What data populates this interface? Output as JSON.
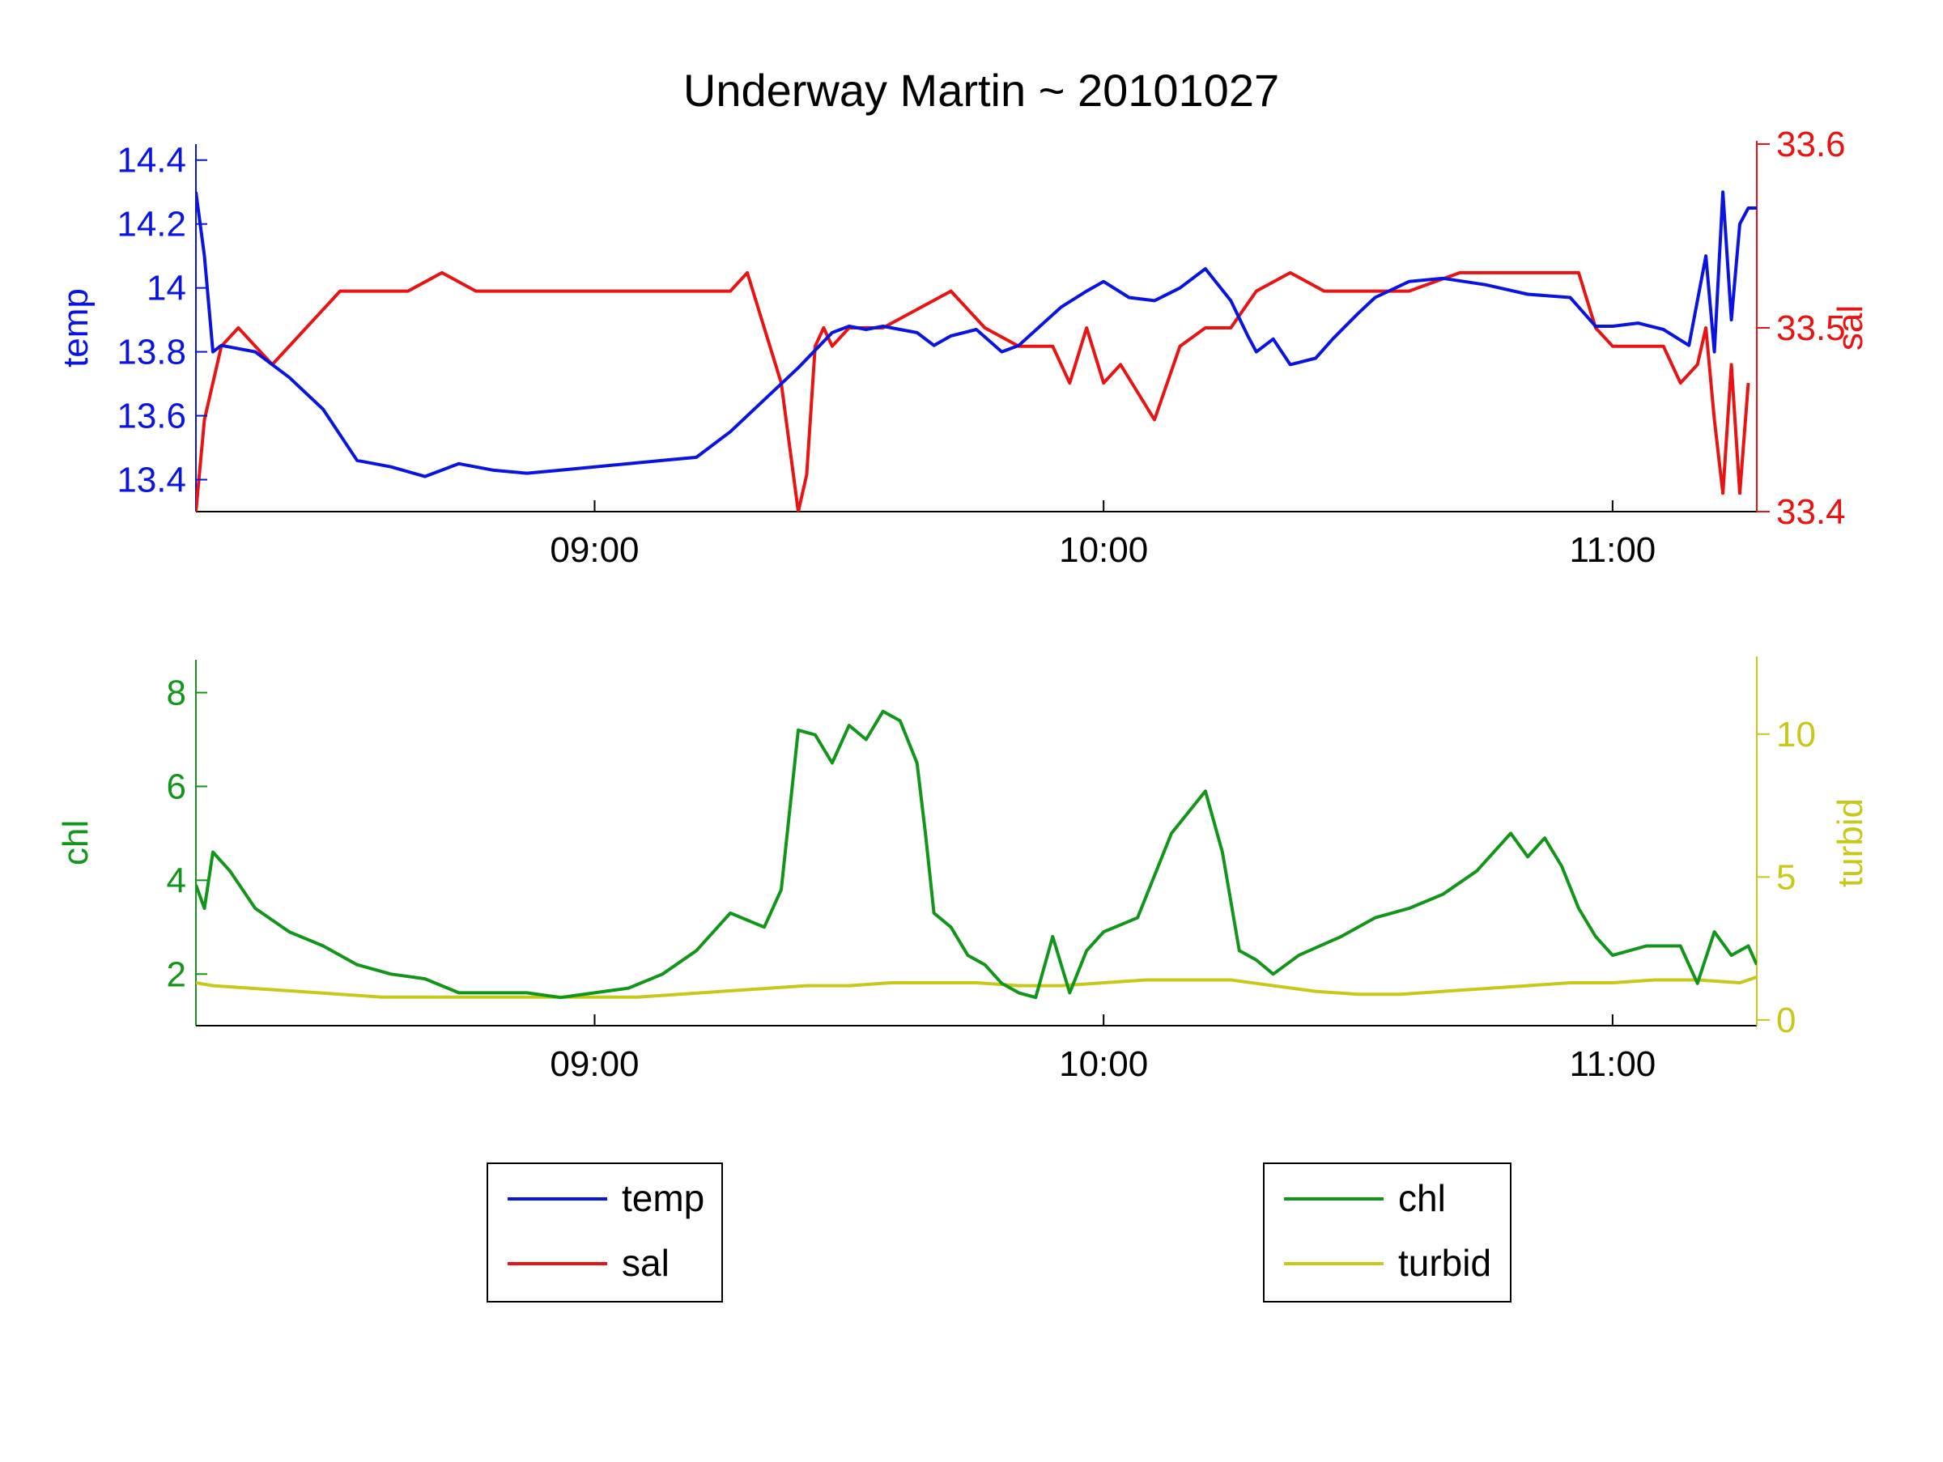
{
  "title": "Underway Martin ~ 20101027",
  "colors": {
    "temp": "#0a14e0",
    "sal": "#e81414",
    "chl": "#12961a",
    "turbid": "#c8c81a",
    "axis": "#000000"
  },
  "chart_data": [
    {
      "type": "line",
      "title": "Underway Martin ~ 20101027",
      "x_unit": "time of day (HH:MM)",
      "xlim": [
        "08:13",
        "11:17"
      ],
      "xticks": [
        "09:00",
        "10:00",
        "11:00"
      ],
      "left_axis": {
        "label": "temp",
        "ylim": [
          13.3,
          14.45
        ],
        "ticks": [
          "13.4",
          "13.6",
          "13.8",
          "14",
          "14.2",
          "14.4"
        ]
      },
      "right_axis": {
        "label": "sal",
        "ylim": [
          33.4,
          33.6
        ],
        "ticks": [
          "33.4",
          "33.5",
          "33.6"
        ]
      },
      "grid": false,
      "series": [
        {
          "name": "temp",
          "axis": "left",
          "x": [
            "08:13",
            "08:14",
            "08:15",
            "08:16",
            "08:18",
            "08:20",
            "08:24",
            "08:28",
            "08:32",
            "08:36",
            "08:40",
            "08:44",
            "08:48",
            "08:52",
            "08:56",
            "09:00",
            "09:04",
            "09:08",
            "09:12",
            "09:16",
            "09:20",
            "09:24",
            "09:28",
            "09:30",
            "09:32",
            "09:34",
            "09:36",
            "09:38",
            "09:40",
            "09:42",
            "09:45",
            "09:48",
            "09:50",
            "09:55",
            "09:58",
            "10:00",
            "10:03",
            "10:06",
            "10:09",
            "10:12",
            "10:15",
            "10:17",
            "10:18",
            "10:20",
            "10:22",
            "10:25",
            "10:27",
            "10:30",
            "10:32",
            "10:36",
            "10:40",
            "10:45",
            "10:50",
            "10:55",
            "10:58",
            "11:00",
            "11:03",
            "11:06",
            "11:09",
            "11:11",
            "11:12",
            "11:13",
            "11:14",
            "11:15",
            "11:16",
            "11:17"
          ],
          "y": [
            14.3,
            14.1,
            13.8,
            13.82,
            13.81,
            13.8,
            13.72,
            13.62,
            13.46,
            13.44,
            13.41,
            13.45,
            13.43,
            13.42,
            13.43,
            13.44,
            13.45,
            13.46,
            13.47,
            13.55,
            13.65,
            13.75,
            13.86,
            13.88,
            13.87,
            13.88,
            13.87,
            13.86,
            13.82,
            13.85,
            13.87,
            13.8,
            13.82,
            13.94,
            13.99,
            14.02,
            13.97,
            13.96,
            14.0,
            14.06,
            13.96,
            13.85,
            13.8,
            13.84,
            13.76,
            13.78,
            13.84,
            13.92,
            13.97,
            14.02,
            14.03,
            14.01,
            13.98,
            13.97,
            13.88,
            13.88,
            13.89,
            13.87,
            13.82,
            14.1,
            13.8,
            14.3,
            13.9,
            14.2,
            14.25,
            14.25
          ]
        },
        {
          "name": "sal",
          "axis": "right",
          "x": [
            "08:13",
            "08:14",
            "08:16",
            "08:18",
            "08:22",
            "08:26",
            "08:30",
            "08:34",
            "08:38",
            "08:42",
            "08:46",
            "08:50",
            "08:54",
            "09:00",
            "09:06",
            "09:12",
            "09:16",
            "09:18",
            "09:20",
            "09:22",
            "09:24",
            "09:25",
            "09:26",
            "09:27",
            "09:28",
            "09:30",
            "09:34",
            "09:38",
            "09:42",
            "09:46",
            "09:50",
            "09:54",
            "09:56",
            "09:58",
            "10:00",
            "10:02",
            "10:06",
            "10:09",
            "10:12",
            "10:15",
            "10:18",
            "10:22",
            "10:26",
            "10:30",
            "10:36",
            "10:42",
            "10:48",
            "10:54",
            "10:56",
            "10:58",
            "11:00",
            "11:06",
            "11:08",
            "11:10",
            "11:11",
            "11:12",
            "11:13",
            "11:14",
            "11:15",
            "11:16"
          ],
          "y": [
            33.4,
            33.45,
            33.49,
            33.5,
            33.48,
            33.5,
            33.52,
            33.52,
            33.52,
            33.53,
            33.52,
            33.52,
            33.52,
            33.52,
            33.52,
            33.52,
            33.52,
            33.53,
            33.5,
            33.47,
            33.4,
            33.42,
            33.49,
            33.5,
            33.49,
            33.5,
            33.5,
            33.51,
            33.52,
            33.5,
            33.49,
            33.49,
            33.47,
            33.5,
            33.47,
            33.48,
            33.45,
            33.49,
            33.5,
            33.5,
            33.52,
            33.53,
            33.52,
            33.52,
            33.52,
            33.53,
            33.53,
            33.53,
            33.53,
            33.5,
            33.49,
            33.49,
            33.47,
            33.48,
            33.5,
            33.45,
            33.41,
            33.48,
            33.41,
            33.47
          ]
        }
      ]
    },
    {
      "type": "line",
      "xlim": [
        "08:13",
        "11:17"
      ],
      "xticks": [
        "09:00",
        "10:00",
        "11:00"
      ],
      "left_axis": {
        "label": "chl",
        "ylim": [
          0.9,
          8.7
        ],
        "ticks": [
          "2",
          "4",
          "6",
          "8"
        ]
      },
      "right_axis": {
        "label": "turbid",
        "ylim": [
          -0.2,
          12.6
        ],
        "ticks": [
          "0",
          "5",
          "10"
        ]
      },
      "grid": false,
      "series": [
        {
          "name": "chl",
          "axis": "left",
          "x": [
            "08:13",
            "08:14",
            "08:15",
            "08:17",
            "08:20",
            "08:24",
            "08:28",
            "08:32",
            "08:36",
            "08:40",
            "08:44",
            "08:48",
            "08:52",
            "08:56",
            "09:00",
            "09:04",
            "09:08",
            "09:12",
            "09:16",
            "09:20",
            "09:22",
            "09:24",
            "09:26",
            "09:28",
            "09:30",
            "09:32",
            "09:34",
            "09:36",
            "09:38",
            "09:39",
            "09:40",
            "09:42",
            "09:44",
            "09:46",
            "09:48",
            "09:50",
            "09:52",
            "09:54",
            "09:56",
            "09:58",
            "10:00",
            "10:04",
            "10:08",
            "10:12",
            "10:14",
            "10:16",
            "10:18",
            "10:20",
            "10:23",
            "10:28",
            "10:32",
            "10:36",
            "10:40",
            "10:44",
            "10:48",
            "10:50",
            "10:52",
            "10:54",
            "10:56",
            "10:58",
            "11:00",
            "11:04",
            "11:08",
            "11:10",
            "11:12",
            "11:14",
            "11:16",
            "11:17"
          ],
          "y": [
            3.9,
            3.4,
            4.6,
            4.2,
            3.4,
            2.9,
            2.6,
            2.2,
            2.0,
            1.9,
            1.6,
            1.6,
            1.6,
            1.5,
            1.6,
            1.7,
            2.0,
            2.5,
            3.3,
            3.0,
            3.8,
            7.2,
            7.1,
            6.5,
            7.3,
            7.0,
            7.6,
            7.4,
            6.5,
            5.0,
            3.3,
            3.0,
            2.4,
            2.2,
            1.8,
            1.6,
            1.5,
            2.8,
            1.6,
            2.5,
            2.9,
            3.2,
            5.0,
            5.9,
            4.6,
            2.5,
            2.3,
            2.0,
            2.4,
            2.8,
            3.2,
            3.4,
            3.7,
            4.2,
            5.0,
            4.5,
            4.9,
            4.3,
            3.4,
            2.8,
            2.4,
            2.6,
            2.6,
            1.8,
            2.9,
            2.4,
            2.6,
            2.2
          ]
        },
        {
          "name": "turbid",
          "axis": "right",
          "x": [
            "08:13",
            "08:15",
            "08:20",
            "08:25",
            "08:30",
            "08:35",
            "08:40",
            "08:45",
            "08:50",
            "08:55",
            "09:00",
            "09:05",
            "09:10",
            "09:15",
            "09:20",
            "09:25",
            "09:30",
            "09:35",
            "09:40",
            "09:45",
            "09:50",
            "09:55",
            "10:00",
            "10:05",
            "10:10",
            "10:15",
            "10:20",
            "10:25",
            "10:30",
            "10:35",
            "10:40",
            "10:45",
            "10:50",
            "10:55",
            "11:00",
            "11:05",
            "11:10",
            "11:15",
            "11:17"
          ],
          "y": [
            1.3,
            1.2,
            1.1,
            1.0,
            0.9,
            0.8,
            0.8,
            0.8,
            0.8,
            0.8,
            0.8,
            0.8,
            0.9,
            1.0,
            1.1,
            1.2,
            1.2,
            1.3,
            1.3,
            1.3,
            1.2,
            1.2,
            1.3,
            1.4,
            1.4,
            1.4,
            1.2,
            1.0,
            0.9,
            0.9,
            1.0,
            1.1,
            1.2,
            1.3,
            1.3,
            1.4,
            1.4,
            1.3,
            1.5
          ]
        }
      ]
    }
  ],
  "legends": [
    {
      "entries": [
        "temp",
        "sal"
      ]
    },
    {
      "entries": [
        "chl",
        "turbid"
      ]
    }
  ]
}
